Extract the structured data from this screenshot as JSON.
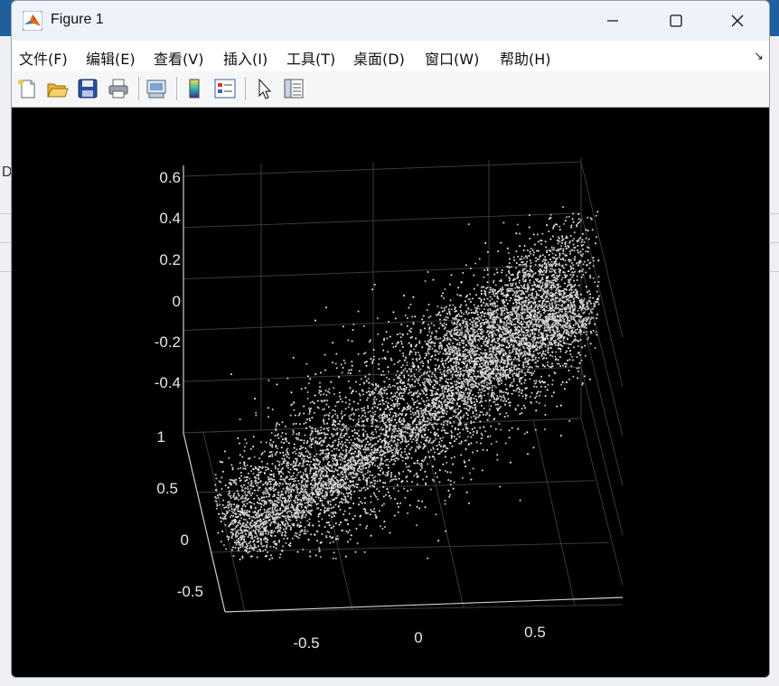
{
  "window": {
    "title": "Figure 1",
    "icon": "matlab-logo-icon",
    "controls": [
      "minimize-icon",
      "maximize-icon",
      "close-icon"
    ]
  },
  "menu": {
    "items": [
      "文件(F)",
      "编辑(E)",
      "查看(V)",
      "插入(I)",
      "工具(T)",
      "桌面(D)",
      "窗口(W)",
      "帮助(H)"
    ],
    "overflow_icon": "dock-arrow-icon"
  },
  "toolbar": {
    "tools": [
      "new-figure-icon",
      "open-file-icon",
      "save-icon",
      "print-icon",
      "link-plot-icon",
      "colorbar-icon",
      "legend-icon",
      "edit-plot-pointer-icon",
      "property-inspector-icon"
    ]
  },
  "background": {
    "partial_letter": "D"
  },
  "chart_data": {
    "type": "scatter",
    "dimensions": 3,
    "background": "#000000",
    "marker_color": "#d0d0d0",
    "grid": true,
    "z_ticks": [
      "0.6",
      "0.4",
      "0.2",
      "0",
      "-0.2",
      "-0.4"
    ],
    "y_ticks": [
      "1",
      "0.5",
      "0",
      "-0.5"
    ],
    "x_ticks": [
      "-0.5",
      "0",
      "0.5"
    ],
    "xlim": [
      -0.9,
      0.9
    ],
    "ylim": [
      -0.75,
      1.0
    ],
    "zlim": [
      -0.5,
      0.65
    ],
    "clusters": [
      {
        "center": [
          -0.15,
          0.25,
          -0.15
        ],
        "spread": [
          0.35,
          0.25,
          0.12
        ],
        "count": 2600
      },
      {
        "center": [
          0.35,
          0.6,
          0.25
        ],
        "spread": [
          0.2,
          0.2,
          0.15
        ],
        "count": 1300
      },
      {
        "center": [
          0.2,
          0.1,
          0.05
        ],
        "spread": [
          0.35,
          0.2,
          0.1
        ],
        "count": 1600
      }
    ]
  }
}
